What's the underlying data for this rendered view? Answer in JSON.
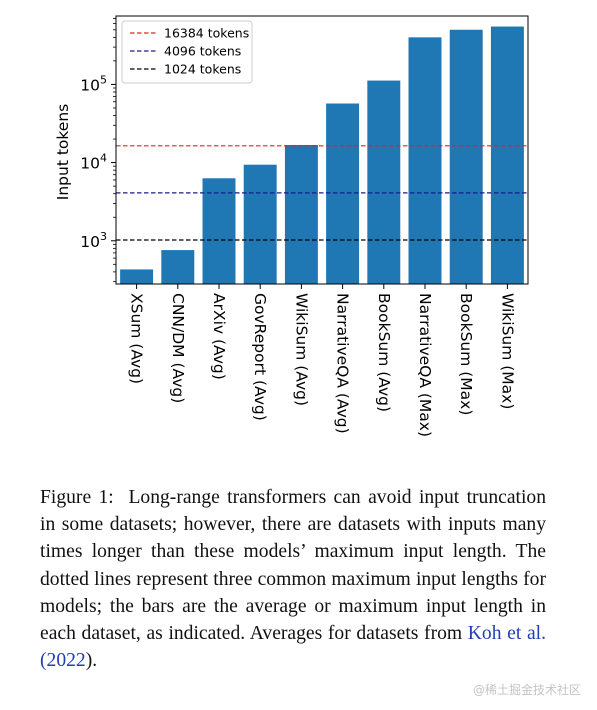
{
  "chart_data": {
    "type": "bar",
    "ylabel": "Input tokens",
    "yscale": "log",
    "ylim": [
      280,
      750000
    ],
    "yticks": [
      1000,
      10000,
      100000
    ],
    "ytick_labels": [
      {
        "base": "10",
        "exp": "3"
      },
      {
        "base": "10",
        "exp": "4"
      },
      {
        "base": "10",
        "exp": "5"
      }
    ],
    "categories": [
      "XSum (Avg)",
      "CNN/DM (Avg)",
      "ArXiv (Avg)",
      "GovReport (Avg)",
      "WikiSum (Avg)",
      "NarrativeQA (Avg)",
      "BookSum (Avg)",
      "NarrativeQA (Max)",
      "BookSum (Max)",
      "WikiSum (Max)"
    ],
    "values": [
      430,
      760,
      6300,
      9400,
      16800,
      57000,
      112000,
      400000,
      500000,
      550000
    ],
    "bar_color": "#1f77b4",
    "reference_lines": [
      {
        "label": "16384 tokens",
        "value": 16384,
        "color": "#d62728"
      },
      {
        "label": "4096 tokens",
        "value": 4096,
        "color": "#1a1a8c"
      },
      {
        "label": "1024 tokens",
        "value": 1024,
        "color": "#000000"
      }
    ],
    "legend_position": "top-left",
    "grid": false
  },
  "caption": {
    "prefix": "Figure 1:",
    "text": "Long-range transformers can avoid input truncation in some datasets; however, there are datasets with inputs many times longer than these models’ maximum input length. The dotted lines represent three common maximum input lengths for models; the bars are the average or maximum input length in each dataset, as indicated. Averages for datasets from ",
    "citation": "Koh et al. (",
    "citation_year": "2022",
    "citation_end": ")."
  },
  "watermark": "@稀土掘金技术社区"
}
